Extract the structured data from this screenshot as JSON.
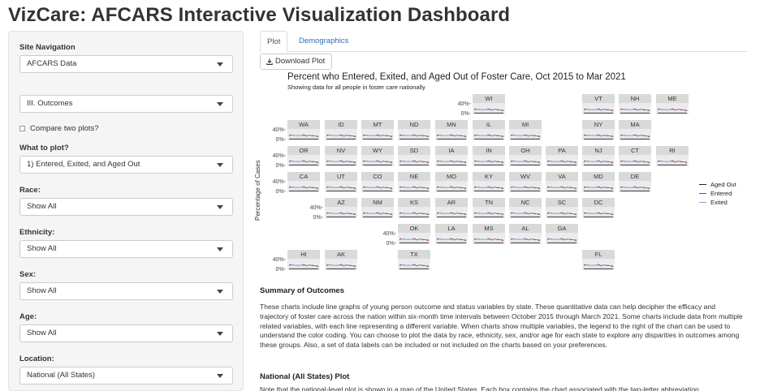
{
  "app": {
    "title": "VizCare: AFCARS Interactive Visualization Dashboard"
  },
  "sidebar": {
    "site_nav_label": "Site Navigation",
    "site_nav_value": "AFCARS Data",
    "section_value": "III. Outcomes",
    "compare_label": "Compare two plots?",
    "what_label": "What to plot?",
    "what_value": "1) Entered, Exited, and Aged Out",
    "race_label": "Race:",
    "race_value": "Show All",
    "ethnicity_label": "Ethnicity:",
    "ethnicity_value": "Show All",
    "sex_label": "Sex:",
    "sex_value": "Show All",
    "age_label": "Age:",
    "age_value": "Show All",
    "location_label": "Location:",
    "location_value": "National (All States)"
  },
  "tabs": {
    "plot": "Plot",
    "demographics": "Demographics"
  },
  "download_label": "Download Plot",
  "colors": {
    "aged_out": "#222222",
    "entered": "#b22c3c",
    "exited": "#7f9fd6",
    "strip": "#d9d9d9",
    "panel": "#ebebeb",
    "link": "#2a6fb5"
  },
  "chart_data": {
    "type": "line",
    "title": "Percent who Entered, Exited, and Aged Out of Foster Care, Oct 2015 to Mar 2021",
    "subtitle": "Showing data for all people in foster care nationally",
    "ylabel": "Percentage of Cases",
    "ytick_labels": [
      "40%-",
      "0%-"
    ],
    "legend": [
      "Aged Out",
      "Entered",
      "Exited"
    ],
    "states": [
      "WI",
      "VT",
      "NH",
      "ME",
      "WA",
      "ID",
      "MT",
      "ND",
      "MN",
      "IL",
      "MI",
      "NY",
      "MA",
      "OR",
      "NV",
      "WY",
      "SD",
      "IA",
      "IN",
      "OH",
      "PA",
      "NJ",
      "CT",
      "RI",
      "CA",
      "UT",
      "CO",
      "NE",
      "MO",
      "KY",
      "WV",
      "VA",
      "MD",
      "DE",
      "AZ",
      "NM",
      "KS",
      "AR",
      "TN",
      "NC",
      "SC",
      "DC",
      "OK",
      "LA",
      "MS",
      "AL",
      "GA",
      "HI",
      "AK",
      "TX",
      "FL"
    ],
    "series": [
      {
        "name": "Aged Out",
        "values": [
          3,
          3,
          3,
          3,
          3,
          3,
          3,
          3,
          3,
          3,
          3
        ]
      },
      {
        "name": "Entered",
        "values": [
          24,
          27,
          22,
          25,
          23,
          24,
          21,
          23,
          22,
          20,
          18
        ]
      },
      {
        "name": "Exited",
        "values": [
          20,
          22,
          24,
          21,
          25,
          23,
          22,
          24,
          21,
          22,
          20
        ]
      }
    ],
    "ylim": [
      0,
      55
    ]
  },
  "summary": {
    "heading": "Summary of Outcomes",
    "text": "These charts include line graphs of young person outcome and status variables by state. These quantitative data can help decipher the efficacy and trajectory of foster care across the nation within six-month time intervals between October 2015 through March 2021. Some charts include data from multiple related variables, with each line representing a different variable. When charts show multiple variables, the legend to the right of the chart can be used to understand the color coding. You can choose to plot the data by race, ethnicity, sex, and/or age for each state to explore any disparities in outcomes among these groups. Also, a set of data labels can be included or not included on the charts based on your preferences."
  },
  "national": {
    "heading": "National (All States) Plot",
    "text": "Note that the national-level plot is shown in a map of the United States. Each box contains the chart associated with the two-letter abbreviation"
  }
}
